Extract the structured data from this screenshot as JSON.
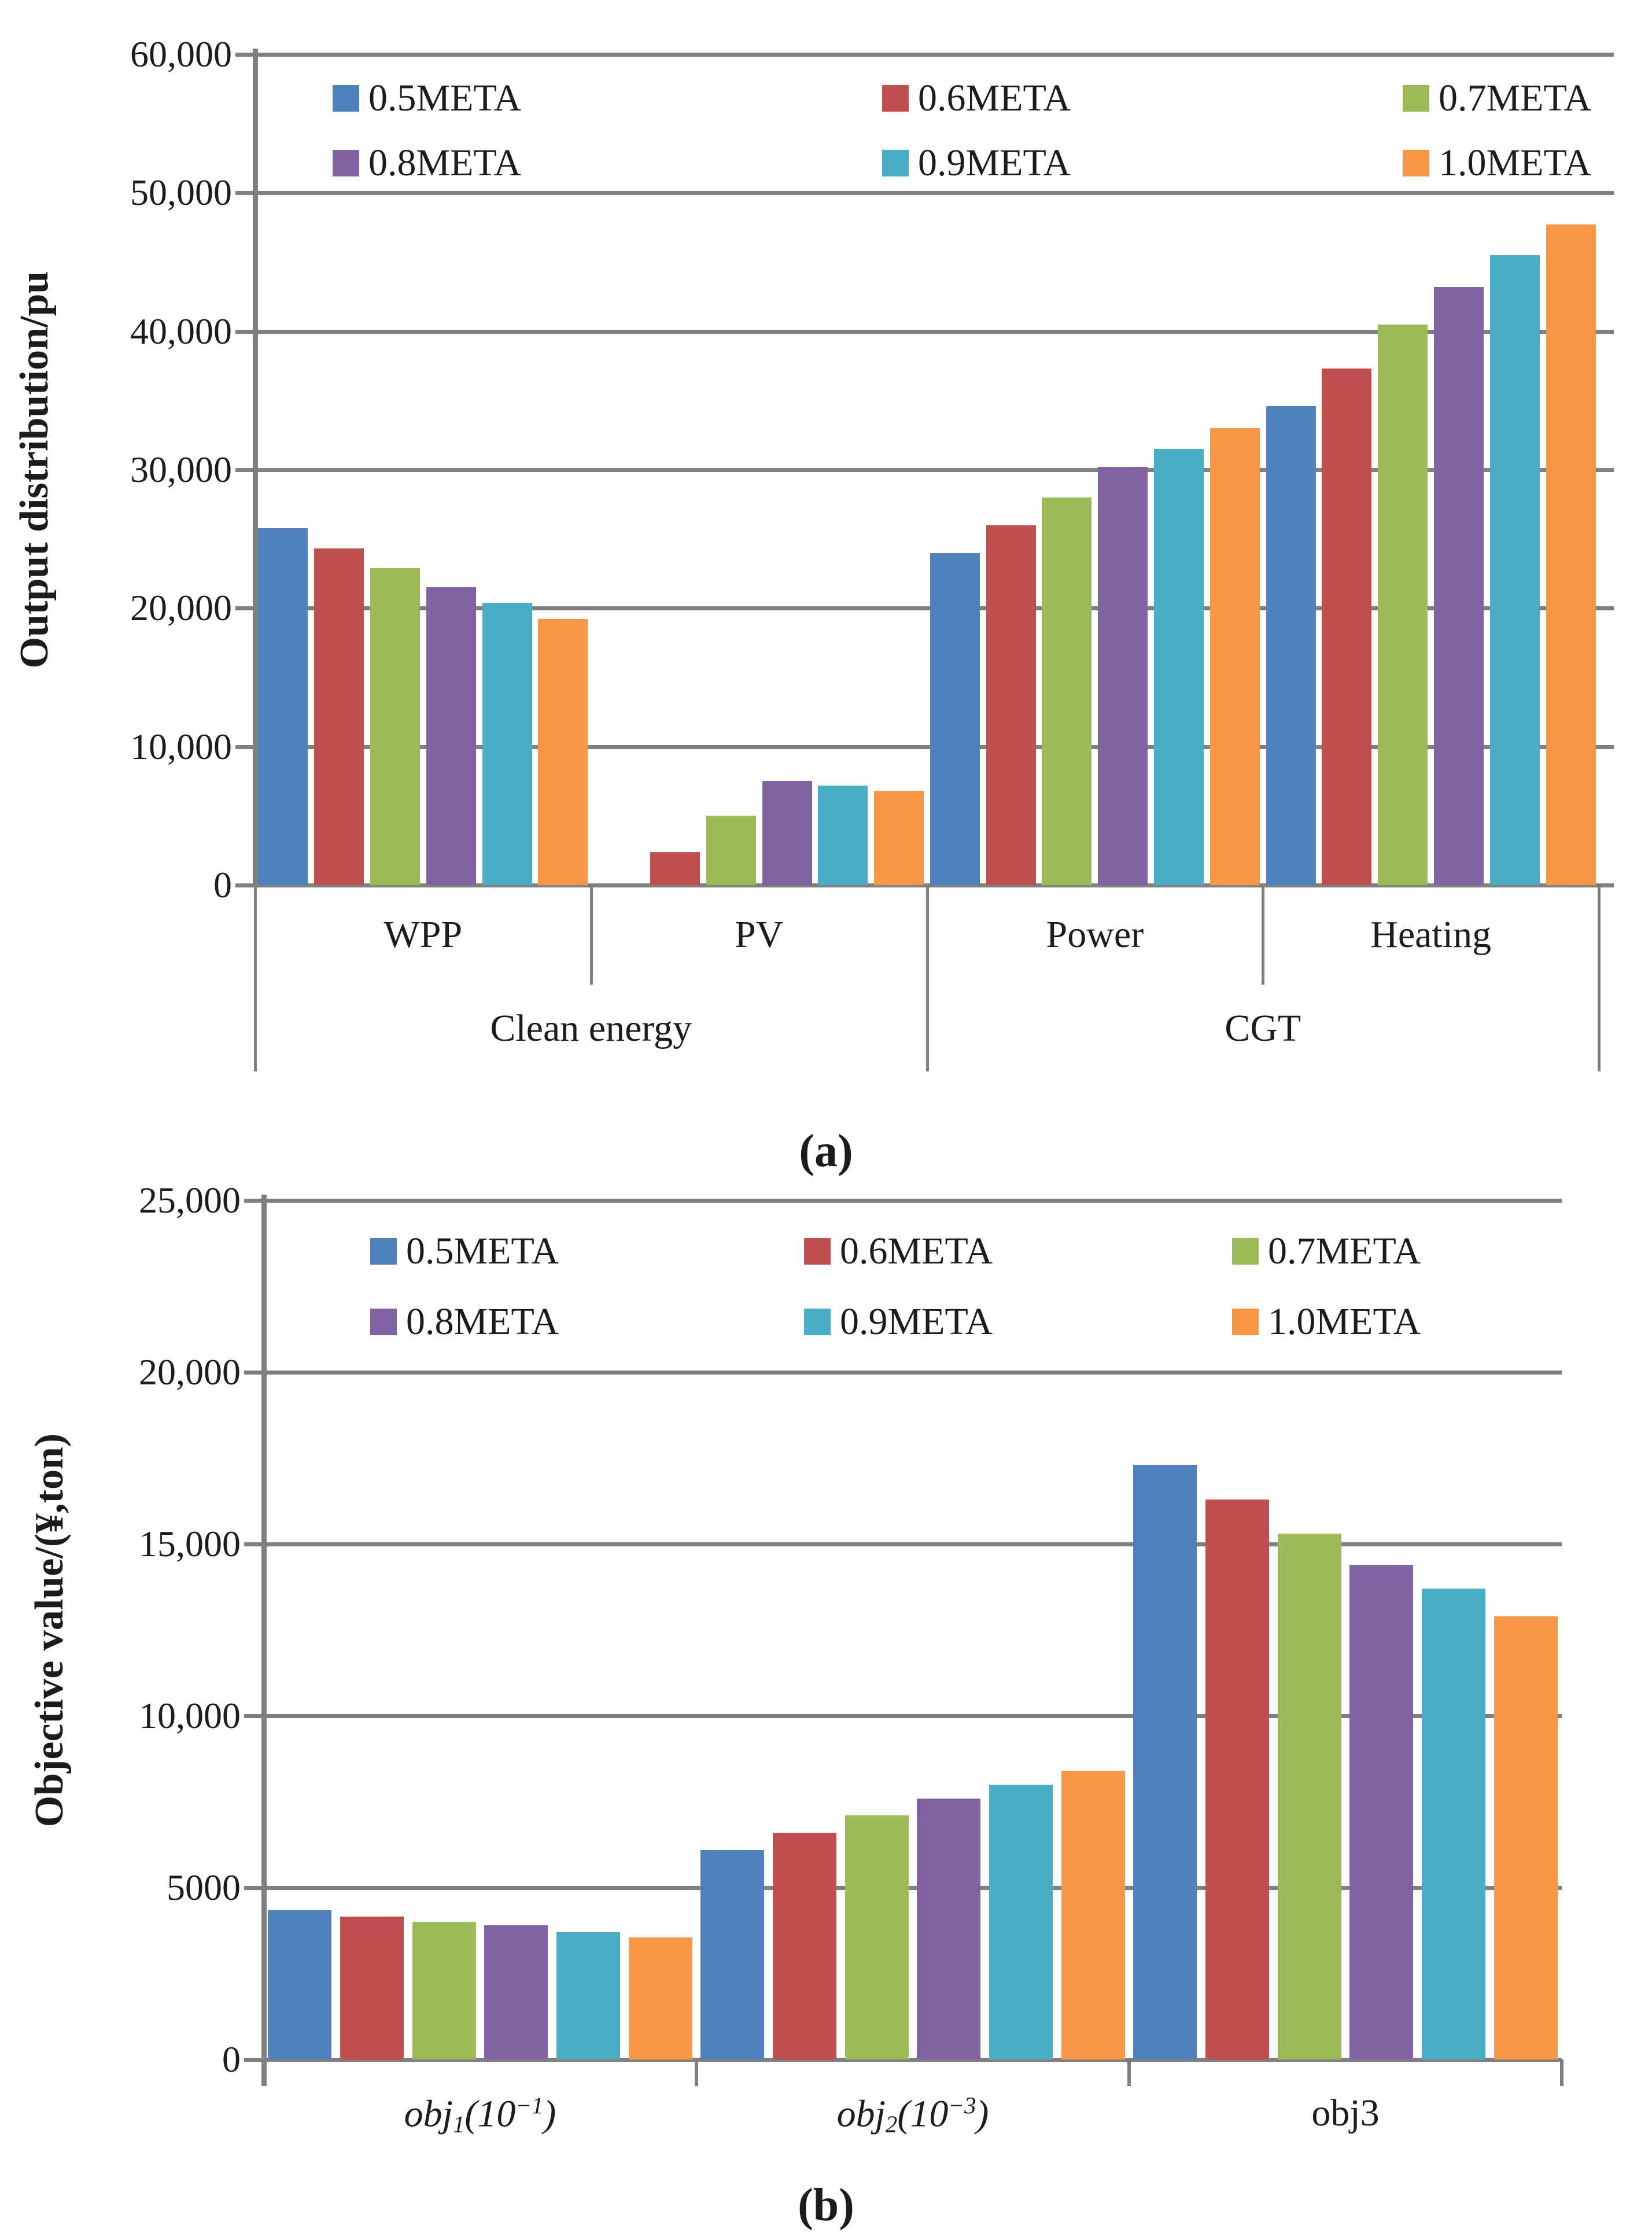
{
  "page": {
    "background": "#ffffff"
  },
  "captions": {
    "a": "(a)",
    "b": "(b)"
  },
  "colors": {
    "gridline": "#7f7f7f",
    "axis": "#7f7f7f",
    "text": "#1c1c1c"
  },
  "legend": {
    "labels": [
      "0.5META",
      "0.6META",
      "0.7META",
      "0.8META",
      "0.9META",
      "1.0META"
    ]
  },
  "chart_data": [
    {
      "type": "bar",
      "panel": "a",
      "title": "",
      "ylabel": "Output distribution/pu",
      "ylim": [
        0,
        60000
      ],
      "yticks": [
        60000,
        50000,
        40000,
        30000,
        20000,
        10000,
        0
      ],
      "ytick_labels": [
        "60,000",
        "50,000",
        "40,000",
        "30,000",
        "20,000",
        "10,000",
        "0"
      ],
      "grid": true,
      "legend_position": "top-inside",
      "categories": [
        "WPP",
        "PV",
        "Power",
        "Heating"
      ],
      "category_groups": [
        {
          "label": "Clean energy",
          "span": 2
        },
        {
          "label": "CGT",
          "span": 2
        }
      ],
      "series": [
        {
          "name": "0.5META",
          "color": "#4F81BD",
          "values": [
            25800,
            0,
            24000,
            34600
          ]
        },
        {
          "name": "0.6META",
          "color": "#C0504D",
          "values": [
            24300,
            2400,
            26000,
            37300
          ]
        },
        {
          "name": "0.7META",
          "color": "#9BBB59",
          "values": [
            22900,
            5000,
            28000,
            40500
          ]
        },
        {
          "name": "0.8META",
          "color": "#8064A2",
          "values": [
            21500,
            7500,
            30200,
            43200
          ]
        },
        {
          "name": "0.9META",
          "color": "#4BACC6",
          "values": [
            20400,
            7200,
            31500,
            45500
          ]
        },
        {
          "name": "1.0META",
          "color": "#F79646",
          "values": [
            19200,
            6800,
            33000,
            47700
          ]
        }
      ]
    },
    {
      "type": "bar",
      "panel": "b",
      "title": "",
      "ylabel": "Objective value/(¥,ton)",
      "ylim": [
        0,
        25000
      ],
      "yticks": [
        25000,
        20000,
        15000,
        10000,
        5000,
        0
      ],
      "ytick_labels": [
        "25,000",
        "20,000",
        "15,000",
        "10,000",
        "5000",
        "0"
      ],
      "grid": true,
      "legend_position": "top-inside",
      "categories_rich": [
        {
          "pre": "obj",
          "sub": "1",
          "mid": "(10",
          "sup": "−1",
          "post": ")",
          "italic": true
        },
        {
          "pre": "obj",
          "sub": "2",
          "mid": "(10",
          "sup": "−3",
          "post": ")",
          "italic": true
        },
        {
          "pre": "obj3",
          "italic": false
        }
      ],
      "series": [
        {
          "name": "0.5META",
          "color": "#4F81BD",
          "values": [
            4350,
            6100,
            17300
          ]
        },
        {
          "name": "0.6META",
          "color": "#C0504D",
          "values": [
            4150,
            6600,
            16300
          ]
        },
        {
          "name": "0.7META",
          "color": "#9BBB59",
          "values": [
            4000,
            7100,
            15300
          ]
        },
        {
          "name": "0.8META",
          "color": "#8064A2",
          "values": [
            3900,
            7600,
            14400
          ]
        },
        {
          "name": "0.9META",
          "color": "#4BACC6",
          "values": [
            3700,
            8000,
            13700
          ]
        },
        {
          "name": "1.0META",
          "color": "#F79646",
          "values": [
            3550,
            8400,
            12900
          ]
        }
      ]
    }
  ]
}
